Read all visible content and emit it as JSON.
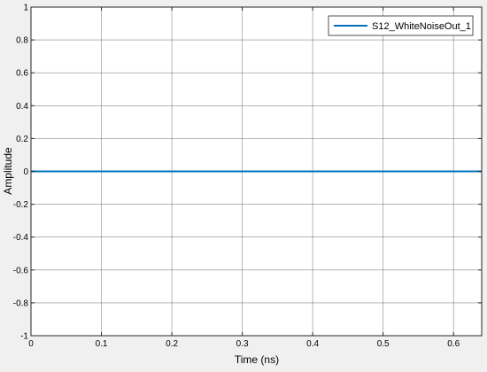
{
  "chart_data": {
    "type": "line",
    "title": "",
    "xlabel": "Time (ns)",
    "ylabel": "Amplitude",
    "xlim": [
      0,
      0.64
    ],
    "ylim": [
      -1,
      1
    ],
    "x_ticks": [
      0,
      0.1,
      0.2,
      0.3,
      0.4,
      0.5,
      0.6
    ],
    "x_tick_labels": [
      "0",
      "0.1",
      "0.2",
      "0.3",
      "0.4",
      "0.5",
      "0.6"
    ],
    "y_ticks": [
      -1,
      -0.8,
      -0.6,
      -0.4,
      -0.2,
      0,
      0.2,
      0.4,
      0.6,
      0.8,
      1
    ],
    "y_tick_labels": [
      "-1",
      "-0.8",
      "-0.6",
      "-0.4",
      "-0.2",
      "0",
      "0.2",
      "0.4",
      "0.6",
      "0.8",
      "1"
    ],
    "grid": true,
    "legend_position": "top-right",
    "series": [
      {
        "name": "S12_WhiteNoiseOut_1",
        "color": "#0072bd",
        "x": [
          0,
          0.64
        ],
        "y": [
          0,
          0
        ]
      }
    ]
  }
}
